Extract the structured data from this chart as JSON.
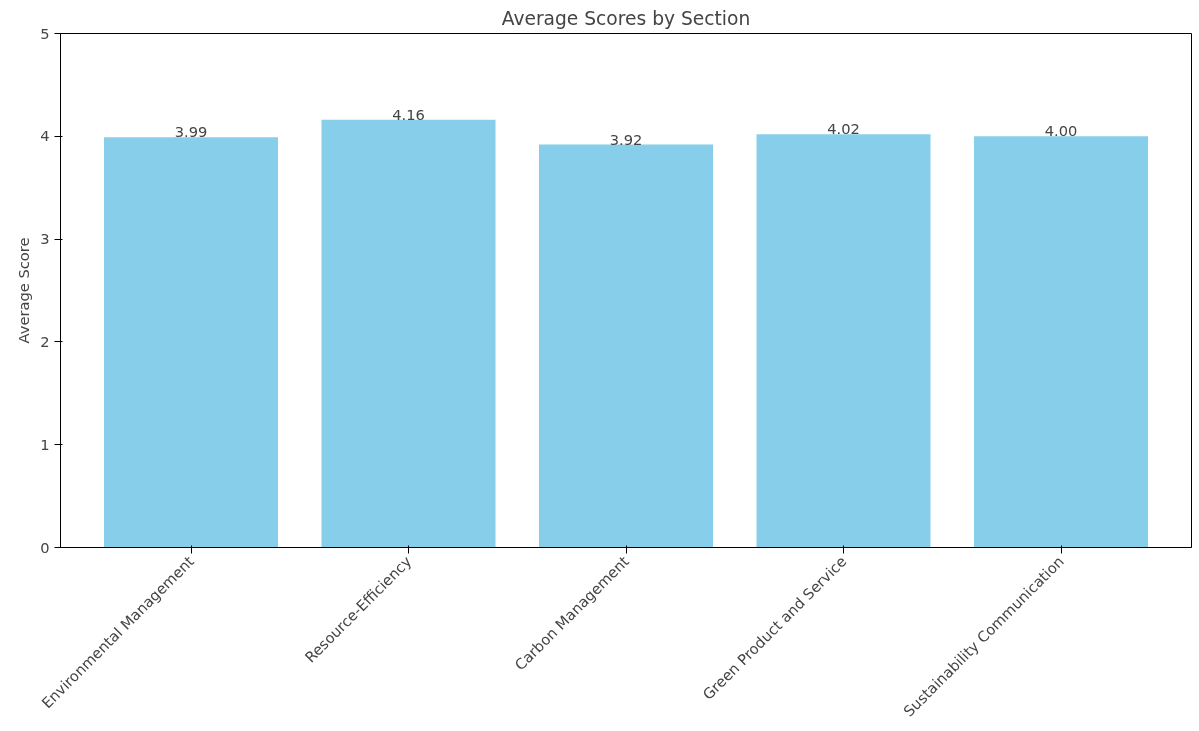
{
  "chart_data": {
    "type": "bar",
    "title": "Average Scores by Section",
    "ylabel": "Average Score",
    "categories": [
      "Environmental Management",
      "Resource-Efficiency",
      "Carbon Management",
      "Green Product and Service",
      "Sustainability Communication"
    ],
    "values": [
      3.99,
      4.16,
      3.92,
      4.02,
      4.0
    ],
    "value_labels": [
      "3.99",
      "4.16",
      "3.92",
      "4.02",
      "4.00"
    ],
    "color": "#87ceeb",
    "ylim": [
      0,
      5
    ],
    "yticks": [
      0,
      1,
      2,
      3,
      4,
      5
    ],
    "grid": false
  }
}
